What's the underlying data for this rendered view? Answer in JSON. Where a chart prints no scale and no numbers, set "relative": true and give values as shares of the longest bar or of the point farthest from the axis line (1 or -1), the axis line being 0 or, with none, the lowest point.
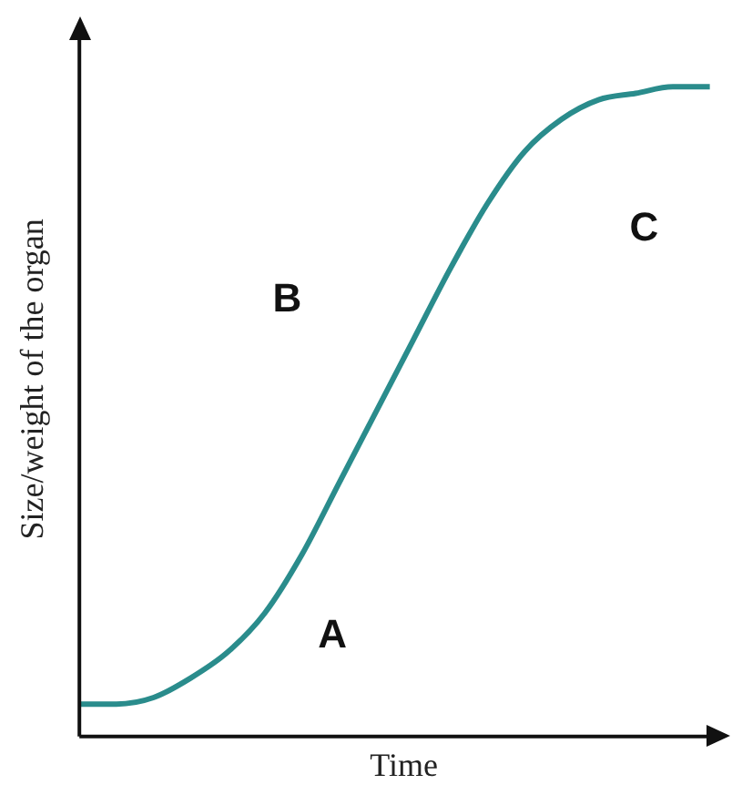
{
  "chart_data": {
    "type": "line",
    "relative": true,
    "xlabel": "Time",
    "ylabel": "Size/weight of the organ",
    "categories": [
      null,
      null,
      null,
      null,
      null,
      null,
      null,
      null,
      null,
      null,
      null,
      null,
      null,
      null,
      null,
      null,
      null,
      null
    ],
    "series": [
      {
        "color": "#2a8c8c",
        "values": [
          0.05,
          0.05,
          0.06,
          0.09,
          0.13,
          0.19,
          0.28,
          0.39,
          0.5,
          0.61,
          0.72,
          0.82,
          0.9,
          0.95,
          0.98,
          0.99,
          1,
          1
        ]
      }
    ],
    "annotations": [
      "A",
      "B",
      "C"
    ],
    "marker": "none",
    "grid": false,
    "legend": false
  }
}
